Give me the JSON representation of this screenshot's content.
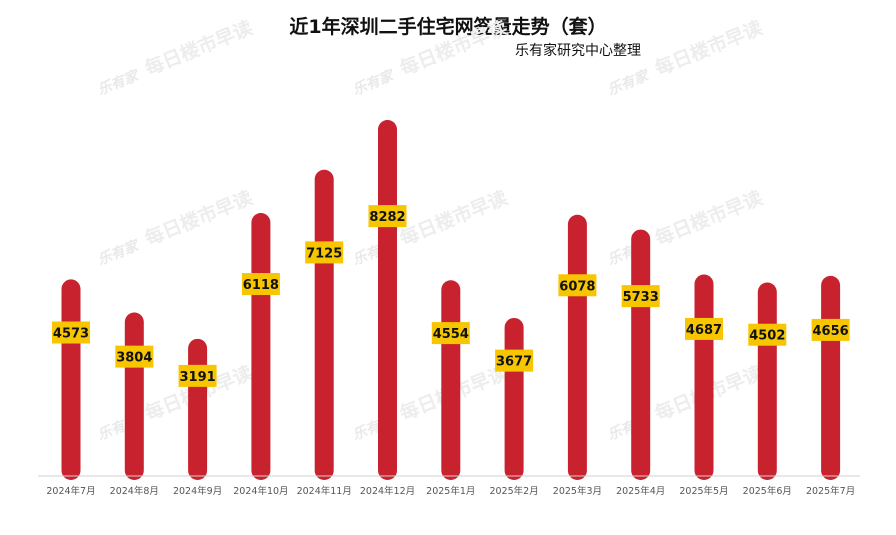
{
  "chart_data": {
    "type": "bar",
    "title": "近1年深圳二手住宅网签量走势（套）",
    "subtitle": "乐有家研究中心整理",
    "categories": [
      "2024年7月",
      "2024年8月",
      "2024年9月",
      "2024年10月",
      "2024年11月",
      "2024年12月",
      "2025年1月",
      "2025年2月",
      "2025年3月",
      "2025年4月",
      "2025年5月",
      "2025年6月",
      "2025年7月"
    ],
    "values": [
      4573,
      3804,
      3191,
      6118,
      7125,
      8282,
      4554,
      3677,
      6078,
      5733,
      4687,
      4502,
      4656
    ],
    "xlabel": "",
    "ylabel": "",
    "ylim": [
      0,
      8400
    ],
    "grid": false,
    "legend": "none",
    "colors": {
      "bar": "#c8222e",
      "label_bg": "#f7c600",
      "label_text": "#111111",
      "axis": "#d0d0d0",
      "tick": "#555555"
    }
  },
  "watermark": {
    "logo": "乐有家",
    "text": "每日楼市早读"
  }
}
